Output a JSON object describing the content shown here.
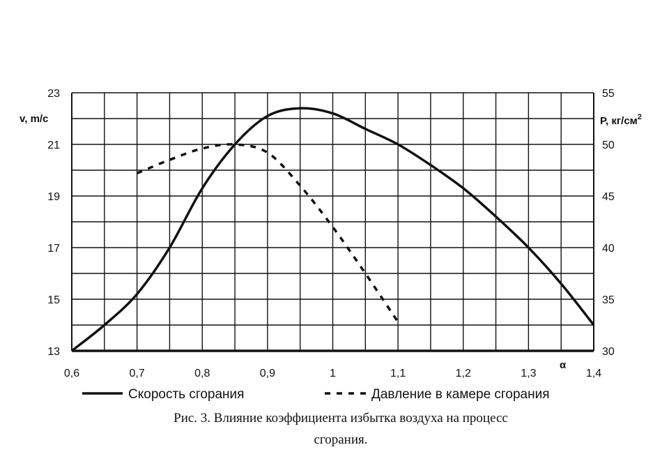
{
  "chart_data": {
    "type": "line",
    "x_ticks": [
      "0,6",
      "0,7",
      "0,8",
      "0,9",
      "1",
      "1,1",
      "1,2",
      "1,3",
      "1,4"
    ],
    "y_left_ticks": [
      "13",
      "15",
      "17",
      "19",
      "21",
      "23"
    ],
    "y_right_ticks": [
      "30",
      "35",
      "40",
      "45",
      "50",
      "55"
    ],
    "xlim": [
      0.6,
      1.4
    ],
    "ylim_left": [
      13,
      23
    ],
    "ylim_right": [
      30,
      55
    ],
    "grid": true,
    "xlabel": "α",
    "ylabel_left": "v, m/c",
    "ylabel_right_base": "P, кг/см",
    "ylabel_right_sup": "2",
    "legend_position": "bottom",
    "series": [
      {
        "name": "Скорость сгорания",
        "axis": "left",
        "style": "solid",
        "x": [
          0.6,
          0.65,
          0.7,
          0.75,
          0.8,
          0.85,
          0.9,
          0.95,
          1.0,
          1.05,
          1.1,
          1.15,
          1.2,
          1.25,
          1.3,
          1.35,
          1.4
        ],
        "y": [
          13.0,
          14.0,
          15.2,
          17.0,
          19.3,
          21.0,
          22.1,
          22.4,
          22.2,
          21.6,
          21.0,
          20.2,
          19.3,
          18.2,
          17.0,
          15.6,
          14.0
        ]
      },
      {
        "name": "Давление в камере сгорания",
        "axis": "right",
        "style": "dashed",
        "x": [
          0.7,
          0.75,
          0.8,
          0.85,
          0.9,
          0.95,
          1.0,
          1.05,
          1.1
        ],
        "y": [
          47.2,
          48.5,
          49.6,
          50.0,
          49.2,
          46.0,
          42.0,
          37.5,
          32.8
        ]
      }
    ],
    "caption_line1": "Рис. 3. Влияние коэффициента избытка воздуха на процесс",
    "caption_line2": "сгорания."
  }
}
